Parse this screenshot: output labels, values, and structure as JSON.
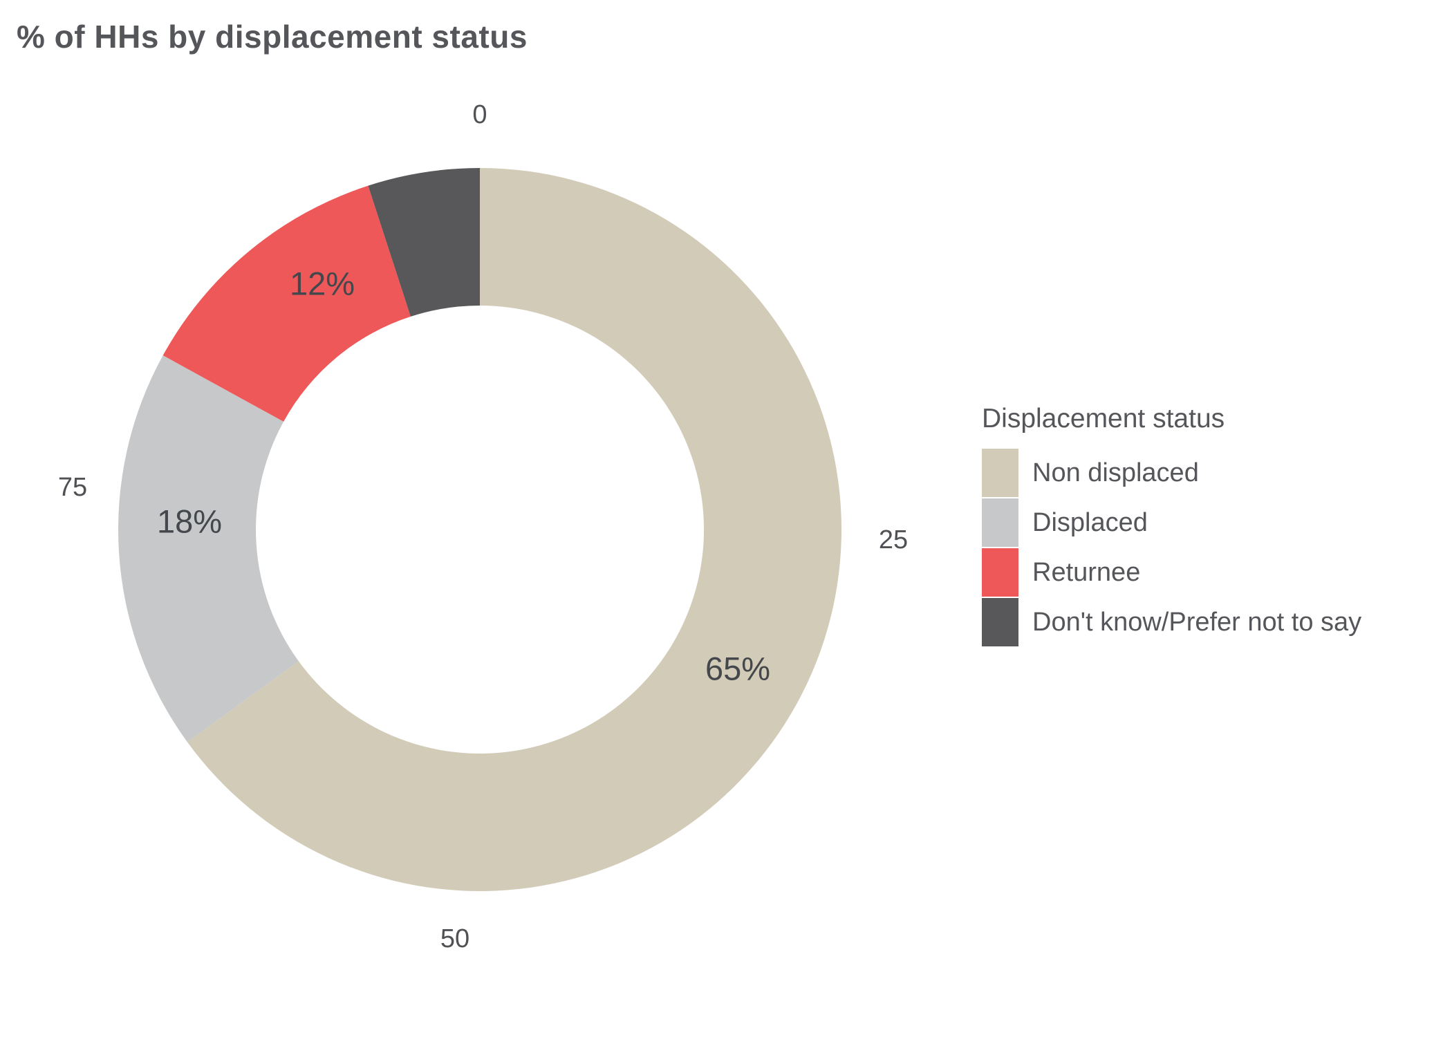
{
  "title": "% of HHs by displacement status",
  "chart_data": {
    "type": "pie",
    "subtype": "donut",
    "title": "% of HHs by displacement status",
    "categories": [
      "Non displaced",
      "Displaced",
      "Returnee",
      "Don't know/Prefer not to say"
    ],
    "values": [
      65,
      18,
      12,
      5
    ],
    "slice_labels": [
      "65%",
      "18%",
      "12%",
      ""
    ],
    "colors": [
      "#d2cbb8",
      "#c7c8ca",
      "#ee5859",
      "#58585a"
    ],
    "total": 100,
    "start_angle_deg": 0,
    "direction": "clockwise",
    "inner_radius_ratio": 0.62,
    "angular_ticks": [
      "0",
      "25",
      "50",
      "75"
    ],
    "legend": {
      "title": "Displacement status",
      "position": "right"
    }
  },
  "style": {
    "title_color": "#54565a",
    "label_color": "#44474b",
    "tick_color": "#4f5154",
    "legend_text_color": "#54565a",
    "background": "#ffffff"
  }
}
